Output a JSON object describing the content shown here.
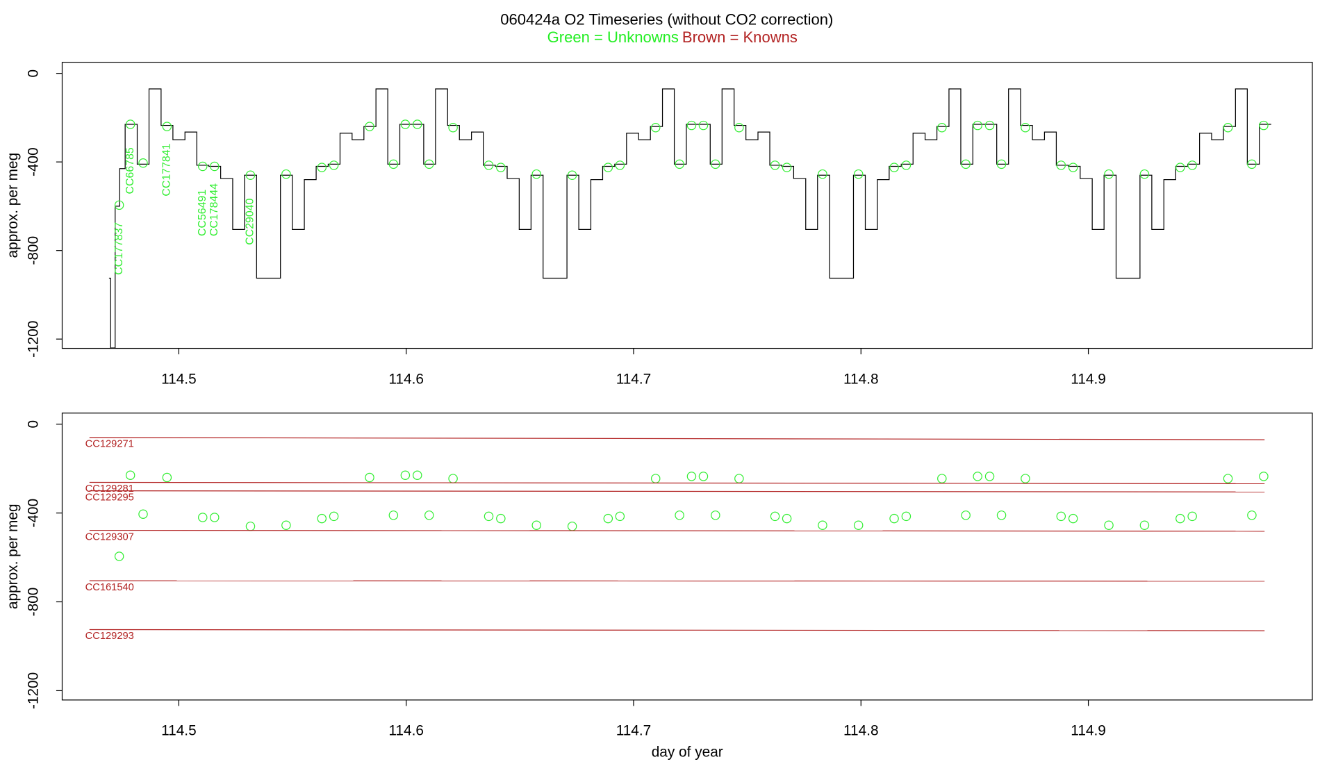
{
  "title": "060424a   O2 Timeseries (without CO2 correction)",
  "subtitle": [
    "Green = Unknowns",
    "Brown = Knowns"
  ],
  "chart_data": [
    {
      "type": "line",
      "ylabel": "approx. per meg",
      "xlim": [
        114.4487,
        114.9985
      ],
      "ylim": [
        -1242,
        50
      ],
      "xticks": [
        114.5,
        114.6,
        114.7,
        114.8,
        114.9
      ],
      "yticks": [
        0,
        -400,
        -800,
        -1200
      ],
      "series": [
        {
          "style": "step",
          "color": "#000000",
          "x": [
            114.4693,
            114.47,
            114.472,
            114.474,
            114.4764,
            114.4817,
            114.4869,
            114.4922,
            114.4974,
            114.5027,
            114.5079,
            114.5132,
            114.5184,
            114.5237,
            114.5289,
            114.5342,
            114.5394,
            114.5447,
            114.5499,
            114.5552,
            114.5604,
            114.5657,
            114.5709,
            114.5762,
            114.5814,
            114.5867,
            114.5919,
            114.5972,
            114.6024,
            114.6077,
            114.6129,
            114.6182,
            114.6234,
            114.6287,
            114.6339,
            114.6392,
            114.6444,
            114.6497,
            114.6549,
            114.6602,
            114.6654,
            114.6707,
            114.6759,
            114.6812,
            114.6864,
            114.6917,
            114.6969,
            114.7022,
            114.7074,
            114.7127,
            114.7179,
            114.7232,
            114.7284,
            114.7337,
            114.7389,
            114.7442,
            114.7494,
            114.7547,
            114.7599,
            114.7652,
            114.7704,
            114.7757,
            114.7809,
            114.7862,
            114.7914,
            114.7967,
            114.8019,
            114.8072,
            114.8124,
            114.8177,
            114.8229,
            114.8282,
            114.8334,
            114.8387,
            114.8439,
            114.8492,
            114.8544,
            114.8597,
            114.8649,
            114.8702,
            114.8754,
            114.8807,
            114.8859,
            114.8912,
            114.8964,
            114.9017,
            114.9069,
            114.9122,
            114.9174,
            114.9227,
            114.9279,
            114.9332,
            114.9384,
            114.9437,
            114.9489,
            114.9542,
            114.9594,
            114.9647,
            114.9699,
            114.9752,
            114.9804
          ],
          "values": [
            -925,
            -1240,
            -600,
            -430,
            -230,
            -410,
            -70,
            -235,
            -300,
            -265,
            -415,
            -420,
            -475,
            -705,
            -460,
            -925,
            -925,
            -460,
            -705,
            -480,
            -420,
            -410,
            -270,
            -300,
            -240,
            -70,
            -410,
            -230,
            -230,
            -410,
            -70,
            -235,
            -300,
            -265,
            -415,
            -420,
            -475,
            -705,
            -460,
            -925,
            -925,
            -460,
            -705,
            -480,
            -420,
            -410,
            -270,
            -300,
            -240,
            -70,
            -410,
            -230,
            -230,
            -410,
            -70,
            -235,
            -300,
            -265,
            -415,
            -420,
            -475,
            -705,
            -460,
            -925,
            -925,
            -460,
            -705,
            -480,
            -420,
            -410,
            -270,
            -300,
            -240,
            -70,
            -410,
            -230,
            -230,
            -410,
            -70,
            -235,
            -300,
            -265,
            -415,
            -420,
            -475,
            -705,
            -460,
            -925,
            -925,
            -460,
            -705,
            -480,
            -420,
            -410,
            -270,
            -300,
            -240,
            -70,
            -410,
            -230,
            -230
          ]
        },
        {
          "style": "points",
          "color": "#33ee33",
          "x": [
            114.4738,
            114.4787,
            114.4843,
            114.4948,
            114.5105,
            114.5157,
            114.5315,
            114.5472,
            114.5629,
            114.5682,
            114.5839,
            114.5944,
            114.5996,
            114.6049,
            114.6101,
            114.6206,
            114.6363,
            114.6416,
            114.6573,
            114.673,
            114.6888,
            114.694,
            114.7097,
            114.7202,
            114.7255,
            114.7307,
            114.736,
            114.7464,
            114.7622,
            114.7674,
            114.7831,
            114.7989,
            114.8146,
            114.8199,
            114.8356,
            114.8461,
            114.8513,
            114.8566,
            114.8618,
            114.8723,
            114.888,
            114.8933,
            114.909,
            114.9247,
            114.9404,
            114.9457,
            114.9614,
            114.9719,
            114.9771
          ],
          "values": [
            -595,
            -230,
            -405,
            -240,
            -420,
            -420,
            -460,
            -455,
            -425,
            -415,
            -240,
            -410,
            -230,
            -230,
            -410,
            -245,
            -415,
            -425,
            -455,
            -460,
            -425,
            -415,
            -245,
            -410,
            -235,
            -235,
            -410,
            -245,
            -415,
            -425,
            -455,
            -455,
            -425,
            -415,
            -245,
            -410,
            -235,
            -235,
            -410,
            -245,
            -415,
            -425,
            -455,
            -455,
            -425,
            -415,
            -245,
            -410,
            -235
          ],
          "labels": [
            "CC177837",
            "CC66785",
            null,
            "CC177841",
            "CC56491",
            "CC178444",
            "CC29040",
            null,
            null,
            null,
            null,
            null,
            null,
            null,
            null,
            null,
            null,
            null,
            null,
            null,
            null,
            null,
            null,
            null,
            null,
            null,
            null,
            null,
            null,
            null,
            null,
            null,
            null,
            null,
            null,
            null,
            null,
            null,
            null,
            null,
            null,
            null,
            null,
            null,
            null,
            null,
            null,
            null,
            null
          ]
        }
      ]
    },
    {
      "type": "line",
      "ylabel": "approx. per meg",
      "xlabel": "day of year",
      "xlim": [
        114.4487,
        114.9985
      ],
      "ylim": [
        -1242,
        50
      ],
      "xticks": [
        114.5,
        114.6,
        114.7,
        114.8,
        114.9
      ],
      "yticks": [
        0,
        -400,
        -800,
        -1200
      ],
      "series": [
        {
          "style": "points",
          "color": "#33ee33",
          "x": [
            114.4738,
            114.4787,
            114.4843,
            114.4948,
            114.5105,
            114.5157,
            114.5315,
            114.5472,
            114.5629,
            114.5682,
            114.5839,
            114.5944,
            114.5996,
            114.6049,
            114.6101,
            114.6206,
            114.6363,
            114.6416,
            114.6573,
            114.673,
            114.6888,
            114.694,
            114.7097,
            114.7202,
            114.7255,
            114.7307,
            114.736,
            114.7464,
            114.7622,
            114.7674,
            114.7831,
            114.7989,
            114.8146,
            114.8199,
            114.8356,
            114.8461,
            114.8513,
            114.8566,
            114.8618,
            114.8723,
            114.888,
            114.8933,
            114.909,
            114.9247,
            114.9404,
            114.9457,
            114.9614,
            114.9719,
            114.9771
          ],
          "values": [
            -595,
            -230,
            -405,
            -240,
            -420,
            -420,
            -460,
            -455,
            -425,
            -415,
            -240,
            -410,
            -230,
            -230,
            -410,
            -245,
            -415,
            -425,
            -455,
            -460,
            -425,
            -415,
            -245,
            -410,
            -235,
            -235,
            -410,
            -245,
            -415,
            -425,
            -455,
            -455,
            -425,
            -415,
            -245,
            -410,
            -235,
            -235,
            -410,
            -245,
            -415,
            -425,
            -455,
            -455,
            -425,
            -415,
            -245,
            -410,
            -235
          ]
        },
        {
          "name": "CC129271",
          "style": "line",
          "color": "#b22222",
          "x": [
            114.4607,
            114.9775
          ],
          "values": [
            -60,
            -70
          ]
        },
        {
          "name": "CC129281",
          "style": "line",
          "color": "#b22222",
          "x": [
            114.4607,
            114.9775
          ],
          "values": [
            -262,
            -268
          ]
        },
        {
          "name": "CC129295",
          "style": "line",
          "color": "#b22222",
          "x": [
            114.4607,
            114.9775
          ],
          "values": [
            -300,
            -305
          ]
        },
        {
          "name": "CC129307",
          "style": "line",
          "color": "#b22222",
          "x": [
            114.4607,
            114.9775
          ],
          "values": [
            -478,
            -482
          ]
        },
        {
          "name": "CC161540",
          "style": "line",
          "color": "#b22222",
          "x": [
            114.4607,
            114.9775
          ],
          "values": [
            -705,
            -707
          ]
        },
        {
          "name": "CC129293",
          "style": "line",
          "color": "#b22222",
          "x": [
            114.4607,
            114.9775
          ],
          "values": [
            -925,
            -930
          ]
        }
      ]
    }
  ]
}
